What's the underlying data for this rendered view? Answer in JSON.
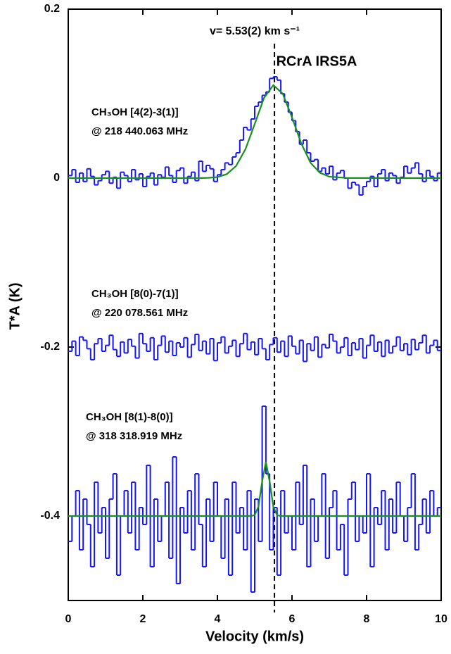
{
  "chart_data": {
    "type": "step",
    "title": "RCrA IRS5A",
    "annotation": "v= 5.53(2) km s⁻¹",
    "vline": 5.53,
    "xlabel": "Velocity (km/s)",
    "ylabel": "T*A (K)",
    "xlim": [
      0,
      10
    ],
    "ylim": [
      -0.5,
      0.2
    ],
    "xticks": [
      0,
      2,
      4,
      6,
      8,
      10
    ],
    "yticks": [
      0.2,
      0,
      -0.2,
      -0.4
    ],
    "x": [
      0.05,
      0.15,
      0.25,
      0.35,
      0.45,
      0.55,
      0.65,
      0.75,
      0.85,
      0.95,
      1.05,
      1.15,
      1.25,
      1.35,
      1.45,
      1.55,
      1.65,
      1.75,
      1.85,
      1.95,
      2.05,
      2.15,
      2.25,
      2.35,
      2.45,
      2.55,
      2.65,
      2.75,
      2.85,
      2.95,
      3.05,
      3.15,
      3.25,
      3.35,
      3.45,
      3.55,
      3.65,
      3.75,
      3.85,
      3.95,
      4.05,
      4.15,
      4.25,
      4.35,
      4.45,
      4.55,
      4.65,
      4.75,
      4.85,
      4.95,
      5.05,
      5.15,
      5.25,
      5.35,
      5.45,
      5.55,
      5.65,
      5.75,
      5.85,
      5.95,
      6.05,
      6.15,
      6.25,
      6.35,
      6.45,
      6.55,
      6.65,
      6.75,
      6.85,
      6.95,
      7.05,
      7.15,
      7.25,
      7.35,
      7.45,
      7.55,
      7.65,
      7.75,
      7.85,
      7.95,
      8.05,
      8.15,
      8.25,
      8.35,
      8.45,
      8.55,
      8.65,
      8.75,
      8.85,
      8.95,
      9.05,
      9.15,
      9.25,
      9.35,
      9.45,
      9.55,
      9.65,
      9.75,
      9.85,
      9.95
    ],
    "series": [
      {
        "name": "CH₃OH [4(2)-3(1)]",
        "frequency": "@ 218 440.063 MHz",
        "color": "#1515ff",
        "values": [
          0.003,
          0.01,
          -0.005,
          0.006,
          -0.004,
          0.011,
          0.002,
          -0.008,
          -0.003,
          0.004,
          0.008,
          -0.006,
          0.001,
          -0.012,
          0.007,
          0.003,
          -0.004,
          0.01,
          -0.002,
          0.005,
          -0.01,
          0.002,
          0.006,
          -0.008,
          0.004,
          0.001,
          0.013,
          0.003,
          -0.005,
          0.009,
          0.012,
          -0.006,
          0.002,
          0.007,
          -0.003,
          0.02,
          0.008,
          0.015,
          0.011,
          -0.004,
          0.004,
          0.01,
          0.018,
          0.016,
          0.025,
          0.03,
          0.045,
          0.06,
          0.057,
          0.07,
          0.085,
          0.09,
          0.098,
          0.102,
          0.118,
          0.12,
          0.116,
          0.1,
          0.09,
          0.078,
          0.068,
          0.055,
          0.04,
          0.045,
          0.03,
          0.02,
          0.022,
          0.008,
          0.012,
          0.005,
          0.014,
          -0.002,
          0.006,
          0.009,
          0.0,
          -0.012,
          -0.005,
          -0.008,
          -0.02,
          -0.01,
          -0.004,
          0.002,
          -0.01,
          0.005,
          0.01,
          -0.003,
          0.006,
          0.003,
          -0.006,
          0.001,
          0.014,
          0.006,
          0.012,
          0.018,
          0.005,
          -0.004,
          0.009,
          0.002,
          -0.003,
          0.006
        ],
        "fit": {
          "color": "#18901c",
          "x": [
            0,
            3.5,
            3.75,
            4,
            4.25,
            4.5,
            4.75,
            5,
            5.25,
            5.5,
            5.75,
            6,
            6.25,
            6.5,
            6.75,
            7,
            7.5,
            10
          ],
          "values": [
            0,
            0,
            0.0003,
            0.0012,
            0.0047,
            0.0143,
            0.034,
            0.064,
            0.095,
            0.11,
            0.1,
            0.072,
            0.041,
            0.018,
            0.0063,
            0.0017,
            0.0001,
            0
          ]
        }
      },
      {
        "name": "CH₃OH [8(0)-7(1)]",
        "frequency": "@ 220 078.561 MHz",
        "color": "#1515ff",
        "values": [
          -0.205,
          -0.193,
          -0.21,
          -0.188,
          -0.192,
          -0.202,
          -0.215,
          -0.196,
          -0.19,
          -0.205,
          -0.198,
          -0.186,
          -0.203,
          -0.211,
          -0.194,
          -0.207,
          -0.191,
          -0.199,
          -0.213,
          -0.184,
          -0.196,
          -0.205,
          -0.189,
          -0.215,
          -0.198,
          -0.187,
          -0.206,
          -0.193,
          -0.21,
          -0.195,
          -0.2,
          -0.189,
          -0.212,
          -0.197,
          -0.185,
          -0.204,
          -0.193,
          -0.208,
          -0.19,
          -0.216,
          -0.195,
          -0.188,
          -0.207,
          -0.199,
          -0.192,
          -0.211,
          -0.196,
          -0.184,
          -0.203,
          -0.194,
          -0.209,
          -0.19,
          -0.202,
          -0.215,
          -0.197,
          -0.189,
          -0.206,
          -0.193,
          -0.211,
          -0.187,
          -0.199,
          -0.208,
          -0.192,
          -0.217,
          -0.196,
          -0.204,
          -0.188,
          -0.212,
          -0.197,
          -0.201,
          -0.185,
          -0.193,
          -0.207,
          -0.2,
          -0.189,
          -0.21,
          -0.195,
          -0.203,
          -0.19,
          -0.213,
          -0.198,
          -0.186,
          -0.205,
          -0.194,
          -0.211,
          -0.192,
          -0.207,
          -0.199,
          -0.188,
          -0.204,
          -0.196,
          -0.209,
          -0.191,
          -0.203,
          -0.195,
          -0.186,
          -0.207,
          -0.198,
          -0.192,
          -0.204
        ]
      },
      {
        "name": "CH₃OH [8(1)-8(0)]",
        "frequency": "@ 318 318.919 MHz",
        "color": "#1515ff",
        "values": [
          -0.43,
          -0.4,
          -0.37,
          -0.44,
          -0.38,
          -0.41,
          -0.46,
          -0.36,
          -0.42,
          -0.39,
          -0.45,
          -0.38,
          -0.35,
          -0.47,
          -0.4,
          -0.37,
          -0.42,
          -0.36,
          -0.44,
          -0.39,
          -0.41,
          -0.34,
          -0.46,
          -0.38,
          -0.43,
          -0.4,
          -0.36,
          -0.45,
          -0.33,
          -0.48,
          -0.39,
          -0.42,
          -0.37,
          -0.44,
          -0.35,
          -0.41,
          -0.46,
          -0.38,
          -0.43,
          -0.36,
          -0.4,
          -0.45,
          -0.38,
          -0.47,
          -0.36,
          -0.42,
          -0.39,
          -0.44,
          -0.37,
          -0.49,
          -0.38,
          -0.43,
          -0.27,
          -0.35,
          -0.44,
          -0.39,
          -0.47,
          -0.37,
          -0.42,
          -0.4,
          -0.44,
          -0.36,
          -0.41,
          -0.34,
          -0.46,
          -0.38,
          -0.43,
          -0.4,
          -0.35,
          -0.45,
          -0.39,
          -0.37,
          -0.44,
          -0.41,
          -0.47,
          -0.38,
          -0.36,
          -0.43,
          -0.4,
          -0.42,
          -0.35,
          -0.46,
          -0.39,
          -0.41,
          -0.37,
          -0.44,
          -0.38,
          -0.42,
          -0.36,
          -0.4,
          -0.43,
          -0.39,
          -0.35,
          -0.44,
          -0.41,
          -0.38,
          -0.42,
          -0.37,
          -0.4,
          -0.39
        ],
        "fit": {
          "color": "#18901c",
          "x": [
            0,
            4.9,
            5,
            5.1,
            5.2,
            5.3,
            5.4,
            5.5,
            5.6,
            5.7,
            10
          ],
          "values": [
            -0.4,
            -0.4,
            -0.3988,
            -0.389,
            -0.359,
            -0.336,
            -0.359,
            -0.389,
            -0.399,
            -0.4,
            -0.4
          ]
        }
      }
    ]
  }
}
